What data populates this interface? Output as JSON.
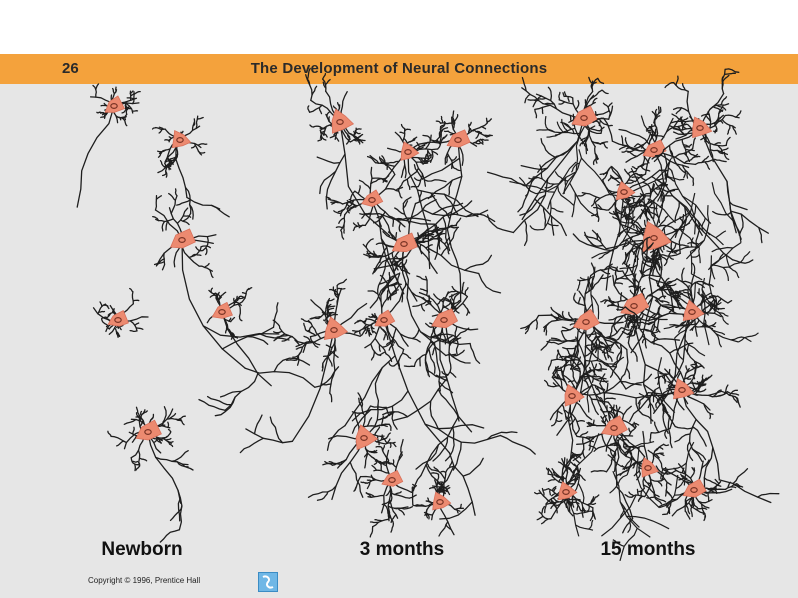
{
  "header": {
    "slide_number": "26",
    "title": "The Development of Neural Connections"
  },
  "panels": [
    {
      "label": "Newborn"
    },
    {
      "label": "3 months"
    },
    {
      "label": "15 months"
    }
  ],
  "footer": {
    "copyright": "Copyright © 1996, Prentice Hall"
  },
  "colors": {
    "header_bar": "#f4a23c",
    "background": "#e6e6e6",
    "cell_body": "#ec8a70",
    "nucleus": "#7a3426",
    "dendrite": "#1e1e1e"
  }
}
